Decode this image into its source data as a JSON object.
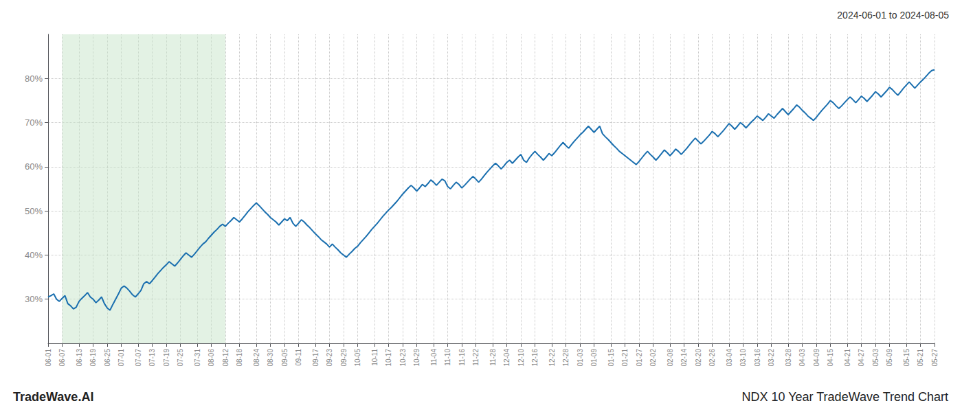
{
  "chart_data": {
    "type": "line",
    "title": "2024-06-01 to 2024-08-05",
    "annotations": [
      "TradeWave.AI",
      "NDX 10 Year TradeWave Trend Chart"
    ],
    "color": "#1a6faf",
    "grid": true,
    "highlight": {
      "from": "06-07",
      "to": "08-12",
      "color": "#c8e6c9"
    },
    "ylim": [
      20,
      90
    ],
    "yticks": [
      {
        "value": 30,
        "label": "30%"
      },
      {
        "value": 40,
        "label": "40%"
      },
      {
        "value": 50,
        "label": "50%"
      },
      {
        "value": 60,
        "label": "60%"
      },
      {
        "value": 70,
        "label": "70%"
      },
      {
        "value": 80,
        "label": "80%"
      }
    ],
    "categories": [
      "06-01",
      null,
      null,
      null,
      null,
      "06-07",
      null,
      null,
      null,
      null,
      null,
      "06-13",
      null,
      null,
      null,
      null,
      "06-19",
      null,
      null,
      null,
      null,
      "06-25",
      null,
      null,
      null,
      null,
      "07-01",
      null,
      null,
      null,
      null,
      null,
      "07-07",
      null,
      null,
      null,
      null,
      "07-13",
      null,
      null,
      null,
      null,
      "07-19",
      null,
      null,
      null,
      null,
      "07-25",
      null,
      null,
      null,
      null,
      null,
      "07-31",
      null,
      null,
      null,
      null,
      "08-06",
      null,
      null,
      null,
      null,
      "08-12",
      null,
      null,
      null,
      null,
      "08-18",
      null,
      null,
      null,
      null,
      null,
      "08-24",
      null,
      null,
      null,
      null,
      "08-30",
      null,
      null,
      null,
      null,
      "09-05",
      null,
      null,
      null,
      null,
      "09-11",
      null,
      null,
      null,
      null,
      null,
      "09-17",
      null,
      null,
      null,
      null,
      "09-23",
      null,
      null,
      null,
      null,
      "09-29",
      null,
      null,
      null,
      null,
      "10-05",
      null,
      null,
      null,
      null,
      null,
      "10-11",
      null,
      null,
      null,
      null,
      "10-17",
      null,
      null,
      null,
      null,
      "10-23",
      null,
      null,
      null,
      null,
      "10-29",
      null,
      null,
      null,
      null,
      null,
      "11-04",
      null,
      null,
      null,
      null,
      "11-10",
      null,
      null,
      null,
      null,
      "11-16",
      null,
      null,
      null,
      null,
      "11-22",
      null,
      null,
      null,
      null,
      null,
      "11-28",
      null,
      null,
      null,
      null,
      "12-04",
      null,
      null,
      null,
      null,
      "12-10",
      null,
      null,
      null,
      null,
      "12-16",
      null,
      null,
      null,
      null,
      null,
      "12-22",
      null,
      null,
      null,
      null,
      "12-28",
      null,
      null,
      null,
      null,
      "01-03",
      null,
      null,
      null,
      null,
      "01-09",
      null,
      null,
      null,
      null,
      null,
      "01-15",
      null,
      null,
      null,
      null,
      "01-21",
      null,
      null,
      null,
      null,
      "01-27",
      null,
      null,
      null,
      null,
      "02-02",
      null,
      null,
      null,
      null,
      null,
      "02-08",
      null,
      null,
      null,
      null,
      "02-14",
      null,
      null,
      null,
      null,
      "02-20",
      null,
      null,
      null,
      null,
      "02-26",
      null,
      null,
      null,
      null,
      null,
      "03-04",
      null,
      null,
      null,
      null,
      "03-10",
      null,
      null,
      null,
      null,
      "03-16",
      null,
      null,
      null,
      null,
      "03-22",
      null,
      null,
      null,
      null,
      null,
      "03-28",
      null,
      null,
      null,
      null,
      "04-03",
      null,
      null,
      null,
      null,
      "04-09",
      null,
      null,
      null,
      null,
      "04-15",
      null,
      null,
      null,
      null,
      null,
      "04-21",
      null,
      null,
      null,
      null,
      "04-27",
      null,
      null,
      null,
      null,
      "05-03",
      null,
      null,
      null,
      null,
      "05-09",
      null,
      null,
      null,
      null,
      null,
      "05-15",
      null,
      null,
      null,
      null,
      "05-21",
      null,
      null,
      null,
      null,
      "05-27"
    ],
    "values": [
      30.5,
      30.8,
      31.2,
      30.0,
      29.5,
      30.2,
      30.8,
      29.0,
      28.5,
      27.8,
      28.2,
      29.5,
      30.2,
      30.8,
      31.5,
      30.5,
      30.0,
      29.2,
      29.8,
      30.5,
      29.0,
      28.0,
      27.5,
      28.8,
      30.0,
      31.2,
      32.5,
      33.0,
      32.5,
      31.8,
      31.0,
      30.5,
      31.2,
      32.0,
      33.5,
      34.0,
      33.5,
      34.2,
      35.0,
      35.8,
      36.5,
      37.2,
      37.8,
      38.5,
      38.0,
      37.5,
      38.2,
      39.0,
      39.8,
      40.5,
      40.0,
      39.5,
      40.2,
      41.0,
      41.8,
      42.5,
      43.0,
      43.8,
      44.5,
      45.2,
      45.8,
      46.5,
      47.0,
      46.5,
      47.2,
      47.8,
      48.5,
      48.0,
      47.5,
      48.2,
      49.0,
      49.8,
      50.5,
      51.2,
      51.8,
      51.2,
      50.5,
      49.8,
      49.2,
      48.5,
      48.0,
      47.5,
      46.8,
      47.5,
      48.2,
      47.8,
      48.5,
      47.2,
      46.5,
      47.2,
      48.0,
      47.5,
      46.8,
      46.2,
      45.5,
      44.8,
      44.2,
      43.5,
      43.0,
      42.5,
      41.8,
      42.5,
      41.8,
      41.2,
      40.5,
      40.0,
      39.5,
      40.2,
      40.8,
      41.5,
      42.0,
      42.8,
      43.5,
      44.2,
      45.0,
      45.8,
      46.5,
      47.2,
      48.0,
      48.8,
      49.5,
      50.2,
      50.8,
      51.5,
      52.2,
      53.0,
      53.8,
      54.5,
      55.2,
      55.8,
      55.2,
      54.5,
      55.2,
      56.0,
      55.5,
      56.2,
      57.0,
      56.5,
      55.8,
      56.5,
      57.2,
      56.8,
      55.5,
      55.0,
      55.8,
      56.5,
      56.0,
      55.2,
      55.8,
      56.5,
      57.2,
      57.8,
      57.2,
      56.5,
      57.2,
      58.0,
      58.8,
      59.5,
      60.2,
      60.8,
      60.2,
      59.5,
      60.2,
      61.0,
      61.5,
      60.8,
      61.5,
      62.2,
      62.8,
      61.5,
      61.0,
      62.0,
      62.8,
      63.5,
      62.8,
      62.2,
      61.5,
      62.2,
      63.0,
      62.5,
      63.2,
      64.0,
      64.8,
      65.5,
      64.8,
      64.2,
      65.0,
      65.8,
      66.5,
      67.2,
      67.8,
      68.5,
      69.2,
      68.5,
      67.8,
      68.5,
      69.2,
      67.5,
      66.8,
      66.2,
      65.5,
      64.8,
      64.2,
      63.5,
      63.0,
      62.5,
      62.0,
      61.5,
      61.0,
      60.5,
      61.2,
      62.0,
      62.8,
      63.5,
      62.8,
      62.2,
      61.5,
      62.2,
      63.0,
      63.8,
      63.2,
      62.5,
      63.2,
      64.0,
      63.5,
      62.8,
      63.5,
      64.2,
      65.0,
      65.8,
      66.5,
      65.8,
      65.2,
      65.8,
      66.5,
      67.2,
      68.0,
      67.5,
      66.8,
      67.5,
      68.2,
      69.0,
      69.8,
      69.2,
      68.5,
      69.2,
      70.0,
      69.5,
      68.8,
      69.5,
      70.2,
      70.8,
      71.5,
      71.0,
      70.5,
      71.2,
      72.0,
      71.5,
      71.0,
      71.8,
      72.5,
      73.2,
      72.5,
      71.8,
      72.5,
      73.2,
      74.0,
      73.5,
      72.8,
      72.2,
      71.5,
      71.0,
      70.5,
      71.2,
      72.0,
      72.8,
      73.5,
      74.2,
      75.0,
      74.5,
      73.8,
      73.2,
      73.8,
      74.5,
      75.2,
      75.8,
      75.2,
      74.5,
      75.2,
      76.0,
      75.5,
      74.8,
      75.5,
      76.2,
      77.0,
      76.5,
      75.8,
      76.5,
      77.2,
      78.0,
      77.5,
      76.8,
      76.2,
      77.0,
      77.8,
      78.5,
      79.2,
      78.5,
      77.8,
      78.5,
      79.2,
      79.8,
      80.5,
      81.2,
      81.8,
      82.0
    ]
  }
}
